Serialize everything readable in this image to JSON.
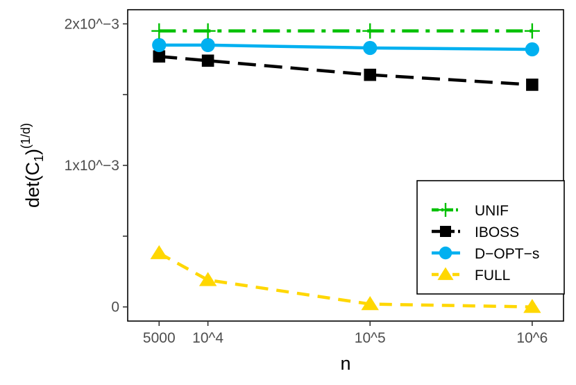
{
  "chart_data": {
    "type": "line",
    "title": "",
    "xlabel": "n",
    "ylabel_main": "det(C",
    "ylabel_sub": "1",
    "ylabel_close": ")",
    "ylabel_sup": "(1/d)",
    "x_scale": "log10",
    "x": [
      5000,
      10000,
      100000,
      1000000
    ],
    "x_tick_labels": [
      "5000",
      "10^4",
      "10^5",
      "10^6"
    ],
    "y_ticks": [
      0,
      0.001,
      0.002
    ],
    "y_tick_labels": [
      "0",
      "1x10^−3",
      "2x10^−3"
    ],
    "ylim": [
      -0.0001,
      0.0021
    ],
    "grid": false,
    "legend_position": "bottom-right",
    "series": [
      {
        "name": "UNIF",
        "values": [
          0.00195,
          0.00195,
          0.00195,
          0.00195
        ],
        "color": "#00c000",
        "dash": "dashdot",
        "marker": "plus"
      },
      {
        "name": "IBOSS",
        "values": [
          0.00177,
          0.00174,
          0.00164,
          0.00157
        ],
        "color": "#000000",
        "dash": "longdash",
        "marker": "square"
      },
      {
        "name": "D−OPT−s",
        "values": [
          0.00185,
          0.00185,
          0.00183,
          0.00182
        ],
        "color": "#00b0f0",
        "dash": "solid",
        "marker": "circle"
      },
      {
        "name": "FULL",
        "values": [
          0.00038,
          0.00019,
          2e-05,
          0.0
        ],
        "color": "#ffd700",
        "dash": "dashed",
        "marker": "triangle"
      }
    ]
  }
}
